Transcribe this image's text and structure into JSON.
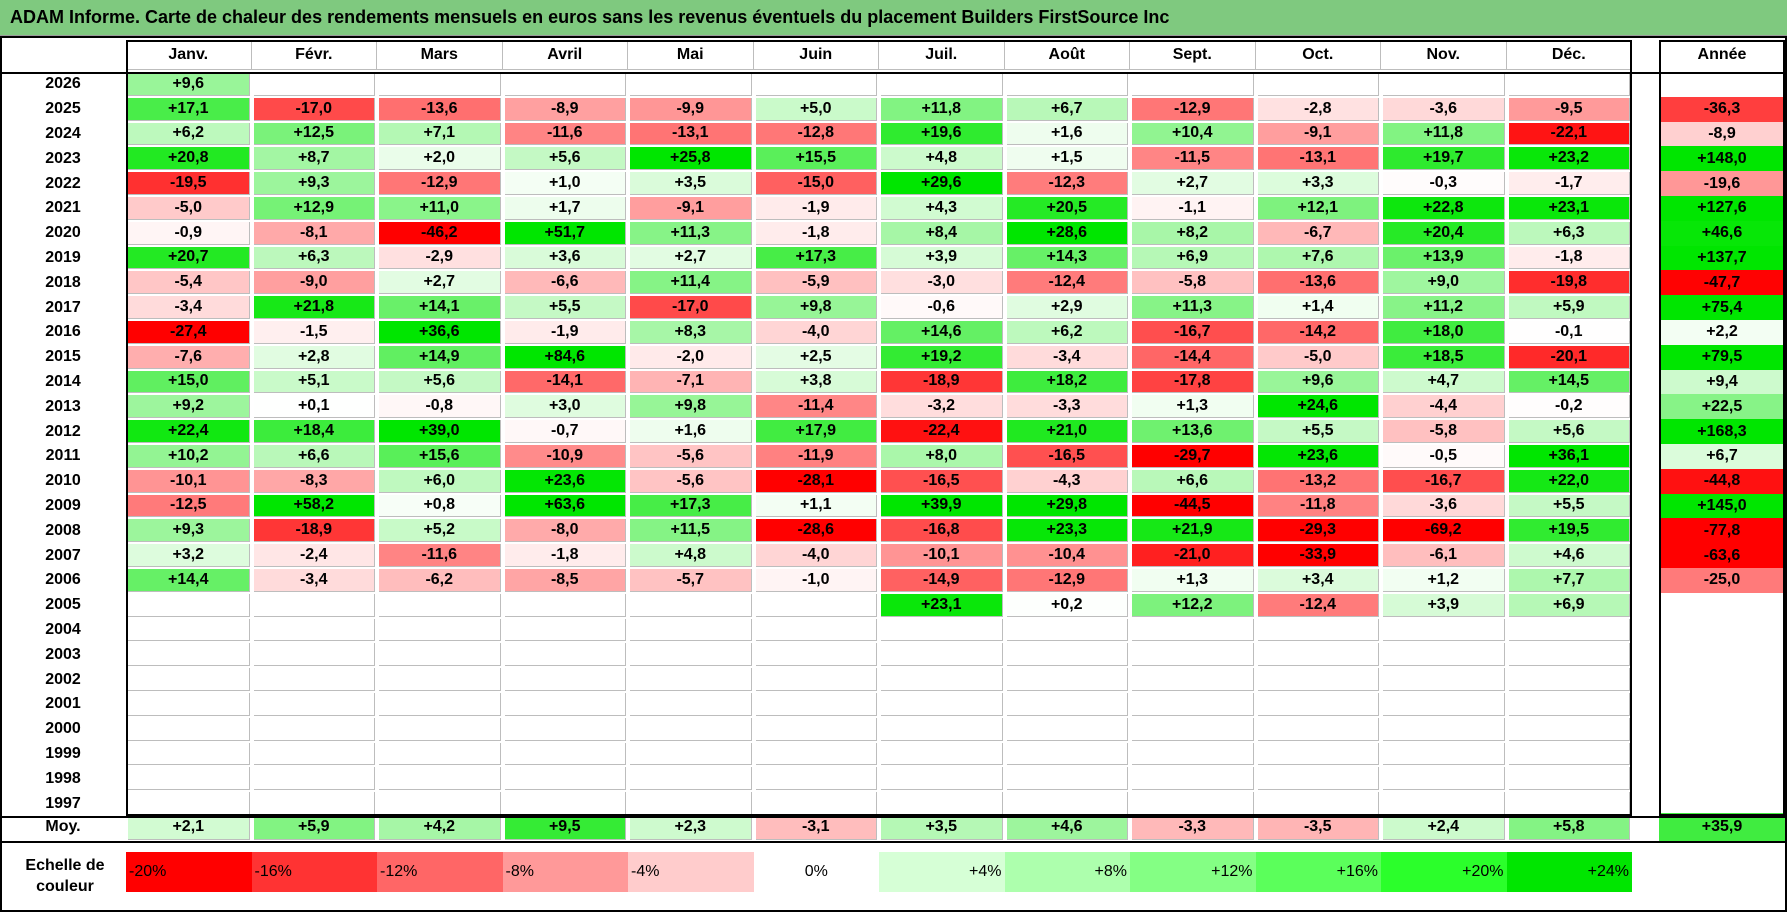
{
  "title": "ADAM Informe. Carte de chaleur des rendements mensuels en euros sans les revenus éventuels du placement Builders FirstSource Inc",
  "chart_data": {
    "type": "heatmap",
    "title": "ADAM Informe. Carte de chaleur des rendements mensuels en euros sans les revenus éventuels du placement Builders FirstSource Inc",
    "columns": [
      "Janv.",
      "Févr.",
      "Mars",
      "Avril",
      "Mai",
      "Juin",
      "Juil.",
      "Août",
      "Sept.",
      "Oct.",
      "Nov.",
      "Déc."
    ],
    "year_header": "Année",
    "rows": [
      {
        "year": "2026",
        "values": [
          "+9,6",
          "",
          "",
          "",
          "",
          "",
          "",
          "",
          "",
          "",
          "",
          ""
        ],
        "annual": ""
      },
      {
        "year": "2025",
        "values": [
          "+17,1",
          "-17,0",
          "-13,6",
          "-8,9",
          "-9,9",
          "+5,0",
          "+11,8",
          "+6,7",
          "-12,9",
          "-2,8",
          "-3,6",
          "-9,5"
        ],
        "annual": "-36,3"
      },
      {
        "year": "2024",
        "values": [
          "+6,2",
          "+12,5",
          "+7,1",
          "-11,6",
          "-13,1",
          "-12,8",
          "+19,6",
          "+1,6",
          "+10,4",
          "-9,1",
          "+11,8",
          "-22,1"
        ],
        "annual": "-8,9"
      },
      {
        "year": "2023",
        "values": [
          "+20,8",
          "+8,7",
          "+2,0",
          "+5,6",
          "+25,8",
          "+15,5",
          "+4,8",
          "+1,5",
          "-11,5",
          "-13,1",
          "+19,7",
          "+23,2"
        ],
        "annual": "+148,0"
      },
      {
        "year": "2022",
        "values": [
          "-19,5",
          "+9,3",
          "-12,9",
          "+1,0",
          "+3,5",
          "-15,0",
          "+29,6",
          "-12,3",
          "+2,7",
          "+3,3",
          "-0,3",
          "-1,7"
        ],
        "annual": "-19,6"
      },
      {
        "year": "2021",
        "values": [
          "-5,0",
          "+12,9",
          "+11,0",
          "+1,7",
          "-9,1",
          "-1,9",
          "+4,3",
          "+20,5",
          "-1,1",
          "+12,1",
          "+22,8",
          "+23,1"
        ],
        "annual": "+127,6"
      },
      {
        "year": "2020",
        "values": [
          "-0,9",
          "-8,1",
          "-46,2",
          "+51,7",
          "+11,3",
          "-1,8",
          "+8,4",
          "+28,6",
          "+8,2",
          "-6,7",
          "+20,4",
          "+6,3"
        ],
        "annual": "+46,6"
      },
      {
        "year": "2019",
        "values": [
          "+20,7",
          "+6,3",
          "-2,9",
          "+3,6",
          "+2,7",
          "+17,3",
          "+3,9",
          "+14,3",
          "+6,9",
          "+7,6",
          "+13,9",
          "-1,8"
        ],
        "annual": "+137,7"
      },
      {
        "year": "2018",
        "values": [
          "-5,4",
          "-9,0",
          "+2,7",
          "-6,6",
          "+11,4",
          "-5,9",
          "-3,0",
          "-12,4",
          "-5,8",
          "-13,6",
          "+9,0",
          "-19,8"
        ],
        "annual": "-47,7"
      },
      {
        "year": "2017",
        "values": [
          "-3,4",
          "+21,8",
          "+14,1",
          "+5,5",
          "-17,0",
          "+9,8",
          "-0,6",
          "+2,9",
          "+11,3",
          "+1,4",
          "+11,2",
          "+5,9"
        ],
        "annual": "+75,4"
      },
      {
        "year": "2016",
        "values": [
          "-27,4",
          "-1,5",
          "+36,6",
          "-1,9",
          "+8,3",
          "-4,0",
          "+14,6",
          "+6,2",
          "-16,7",
          "-14,2",
          "+18,0",
          "-0,1"
        ],
        "annual": "+2,2"
      },
      {
        "year": "2015",
        "values": [
          "-7,6",
          "+2,8",
          "+14,9",
          "+84,6",
          "-2,0",
          "+2,5",
          "+19,2",
          "-3,4",
          "-14,4",
          "-5,0",
          "+18,5",
          "-20,1"
        ],
        "annual": "+79,5"
      },
      {
        "year": "2014",
        "values": [
          "+15,0",
          "+5,1",
          "+5,6",
          "-14,1",
          "-7,1",
          "+3,8",
          "-18,9",
          "+18,2",
          "-17,8",
          "+9,6",
          "+4,7",
          "+14,5"
        ],
        "annual": "+9,4"
      },
      {
        "year": "2013",
        "values": [
          "+9,2",
          "+0,1",
          "-0,8",
          "+3,0",
          "+9,8",
          "-11,4",
          "-3,2",
          "-3,3",
          "+1,3",
          "+24,6",
          "-4,4",
          "-0,2"
        ],
        "annual": "+22,5"
      },
      {
        "year": "2012",
        "values": [
          "+22,4",
          "+18,4",
          "+39,0",
          "-0,7",
          "+1,6",
          "+17,9",
          "-22,4",
          "+21,0",
          "+13,6",
          "+5,5",
          "-5,8",
          "+5,6"
        ],
        "annual": "+168,3"
      },
      {
        "year": "2011",
        "values": [
          "+10,2",
          "+6,6",
          "+15,6",
          "-10,9",
          "-5,6",
          "-11,9",
          "+8,0",
          "-16,5",
          "-29,7",
          "+23,6",
          "-0,5",
          "+36,1"
        ],
        "annual": "+6,7"
      },
      {
        "year": "2010",
        "values": [
          "-10,1",
          "-8,3",
          "+6,0",
          "+23,6",
          "-5,6",
          "-28,1",
          "-16,5",
          "-4,3",
          "+6,6",
          "-13,2",
          "-16,7",
          "+22,0"
        ],
        "annual": "-44,8"
      },
      {
        "year": "2009",
        "values": [
          "-12,5",
          "+58,2",
          "+0,8",
          "+63,6",
          "+17,3",
          "+1,1",
          "+39,9",
          "+29,8",
          "-44,5",
          "-11,8",
          "-3,6",
          "+5,5"
        ],
        "annual": "+145,0"
      },
      {
        "year": "2008",
        "values": [
          "+9,3",
          "-18,9",
          "+5,2",
          "-8,0",
          "+11,5",
          "-28,6",
          "-16,8",
          "+23,3",
          "+21,9",
          "-29,3",
          "-69,2",
          "+19,5"
        ],
        "annual": "-77,8"
      },
      {
        "year": "2007",
        "values": [
          "+3,2",
          "-2,4",
          "-11,6",
          "-1,8",
          "+4,8",
          "-4,0",
          "-10,1",
          "-10,4",
          "-21,0",
          "-33,9",
          "-6,1",
          "+4,6"
        ],
        "annual": "-63,6"
      },
      {
        "year": "2006",
        "values": [
          "+14,4",
          "-3,4",
          "-6,2",
          "-8,5",
          "-5,7",
          "-1,0",
          "-14,9",
          "-12,9",
          "+1,3",
          "+3,4",
          "+1,2",
          "+7,7"
        ],
        "annual": "-25,0"
      },
      {
        "year": "2005",
        "values": [
          "",
          "",
          "",
          "",
          "",
          "",
          "+23,1",
          "+0,2",
          "+12,2",
          "-12,4",
          "+3,9",
          "+6,9"
        ],
        "annual": ""
      },
      {
        "year": "2004",
        "values": [
          "",
          "",
          "",
          "",
          "",
          "",
          "",
          "",
          "",
          "",
          "",
          ""
        ],
        "annual": ""
      },
      {
        "year": "2003",
        "values": [
          "",
          "",
          "",
          "",
          "",
          "",
          "",
          "",
          "",
          "",
          "",
          ""
        ],
        "annual": ""
      },
      {
        "year": "2002",
        "values": [
          "",
          "",
          "",
          "",
          "",
          "",
          "",
          "",
          "",
          "",
          "",
          ""
        ],
        "annual": ""
      },
      {
        "year": "2001",
        "values": [
          "",
          "",
          "",
          "",
          "",
          "",
          "",
          "",
          "",
          "",
          "",
          ""
        ],
        "annual": ""
      },
      {
        "year": "2000",
        "values": [
          "",
          "",
          "",
          "",
          "",
          "",
          "",
          "",
          "",
          "",
          "",
          ""
        ],
        "annual": ""
      },
      {
        "year": "1999",
        "values": [
          "",
          "",
          "",
          "",
          "",
          "",
          "",
          "",
          "",
          "",
          "",
          ""
        ],
        "annual": ""
      },
      {
        "year": "1998",
        "values": [
          "",
          "",
          "",
          "",
          "",
          "",
          "",
          "",
          "",
          "",
          "",
          ""
        ],
        "annual": ""
      },
      {
        "year": "1997",
        "values": [
          "",
          "",
          "",
          "",
          "",
          "",
          "",
          "",
          "",
          "",
          "",
          ""
        ],
        "annual": ""
      }
    ],
    "average": {
      "label": "Moy.",
      "values": [
        "+2,1",
        "+5,9",
        "+4,2",
        "+9,5",
        "+2,3",
        "-3,1",
        "+3,5",
        "+4,6",
        "-3,3",
        "-3,5",
        "+2,4",
        "+5,8"
      ],
      "annual": "+35,9"
    },
    "scale": {
      "label": "Echelle de couleur",
      "steps": [
        {
          "label": "-20%",
          "color": "#ff0000"
        },
        {
          "label": "-16%",
          "color": "#ff3333"
        },
        {
          "label": "-12%",
          "color": "#ff6666"
        },
        {
          "label": "-8%",
          "color": "#ff9999"
        },
        {
          "label": "-4%",
          "color": "#ffcccc"
        },
        {
          "label": "0%",
          "color": "#ffffff"
        },
        {
          "label": "+4%",
          "color": "#d6ffd6"
        },
        {
          "label": "+8%",
          "color": "#adffad"
        },
        {
          "label": "+12%",
          "color": "#84ff84"
        },
        {
          "label": "+16%",
          "color": "#5bff5b"
        },
        {
          "label": "+20%",
          "color": "#2bff2b"
        },
        {
          "label": "+24%",
          "color": "#00e600"
        }
      ]
    }
  }
}
